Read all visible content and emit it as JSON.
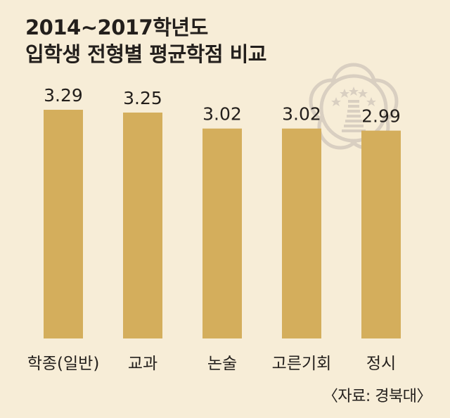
{
  "title_line1": "2014~2017학년도",
  "title_line2": "입학생 전형별 평균학점 비교",
  "source": "〈자료: 경북대〉",
  "colors": {
    "background": "#f7edd7",
    "bar": "#d4ae5c",
    "text": "#231f1c",
    "emblem": "#d9cfc1"
  },
  "chart_data": {
    "type": "bar",
    "title": "2014~2017학년도 입학생 전형별 평균학점 비교",
    "categories": [
      "학종(일반)",
      "교과",
      "논술",
      "고른기회",
      "정시"
    ],
    "values": [
      3.29,
      3.25,
      3.02,
      3.02,
      2.99
    ],
    "value_labels": [
      "3.29",
      "3.25",
      "3.02",
      "3.02",
      "2.99"
    ],
    "xlabel": "",
    "ylabel": "",
    "grid": false,
    "legend": "none"
  }
}
